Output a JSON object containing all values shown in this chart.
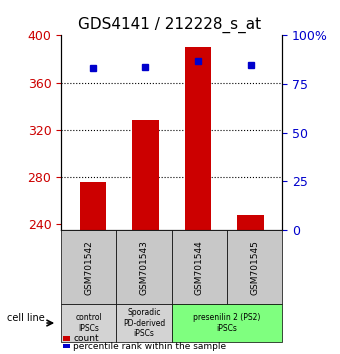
{
  "title": "GDS4141 / 212228_s_at",
  "samples": [
    "GSM701542",
    "GSM701543",
    "GSM701544",
    "GSM701545"
  ],
  "bar_bottom": 235,
  "bar_tops": [
    276,
    328,
    390,
    248
  ],
  "percentile_ranks": [
    83,
    84,
    87,
    85
  ],
  "ylim_left": [
    235,
    400
  ],
  "ylim_right": [
    0,
    100
  ],
  "yticks_left": [
    240,
    280,
    320,
    360,
    400
  ],
  "yticks_right": [
    0,
    25,
    50,
    75,
    100
  ],
  "ytick_labels_right": [
    "0",
    "25",
    "50",
    "75",
    "100%"
  ],
  "bar_color": "#cc0000",
  "dot_color": "#0000cc",
  "groups": [
    {
      "label": "control\nIPSCs",
      "color": "#d3d3d3",
      "span": [
        0,
        1
      ]
    },
    {
      "label": "Sporadic\nPD-derived\niPSCs",
      "color": "#d3d3d3",
      "span": [
        1,
        2
      ]
    },
    {
      "label": "presenilin 2 (PS2)\niPSCs",
      "color": "#7fff7f",
      "span": [
        2,
        4
      ]
    }
  ],
  "cell_line_label": "cell line",
  "legend_items": [
    {
      "color": "#cc0000",
      "label": "count"
    },
    {
      "color": "#0000cc",
      "label": "percentile rank within the sample"
    }
  ],
  "bar_width": 0.5,
  "sample_box_color": "#c8c8c8",
  "box_border_color": "#000000",
  "title_fontsize": 11,
  "tick_fontsize": 9,
  "label_fontsize": 8
}
